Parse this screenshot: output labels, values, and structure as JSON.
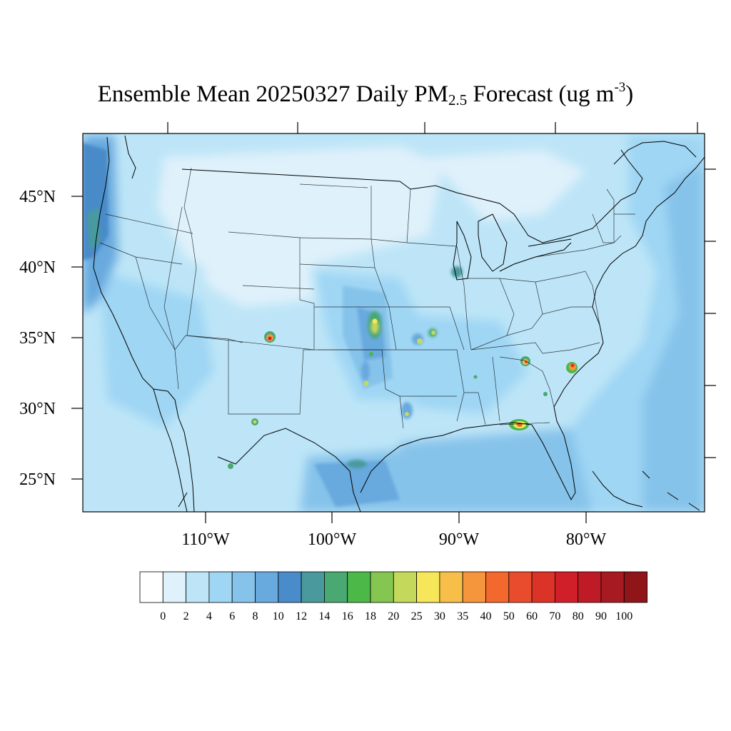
{
  "title": {
    "prefix": "Ensemble Mean 20250327 Daily PM",
    "sub": "2.5",
    "mid": " Forecast (ug m",
    "sup": "-3",
    "suffix": ")"
  },
  "lat_labels": [
    "45°N",
    "40°N",
    "35°N",
    "30°N",
    "25°N"
  ],
  "lon_labels": [
    "110°W",
    "100°W",
    "90°W",
    "80°W"
  ],
  "colorbar": {
    "colors": [
      "#ffffff",
      "#dff1fb",
      "#bde5f7",
      "#9fd6f4",
      "#86c3ea",
      "#68a9de",
      "#4a8bc9",
      "#4a9a9d",
      "#4aa872",
      "#4cb848",
      "#84c650",
      "#c4d95c",
      "#f6e65a",
      "#f7bf4a",
      "#f6963c",
      "#f3682d",
      "#e94c2c",
      "#dc3328",
      "#d11f2a",
      "#bf1b26",
      "#a81a22",
      "#8f1519"
    ],
    "labels": [
      "0",
      "2",
      "4",
      "6",
      "8",
      "10",
      "12",
      "14",
      "16",
      "18",
      "20",
      "25",
      "30",
      "35",
      "40",
      "50",
      "60",
      "70",
      "80",
      "90",
      "100"
    ]
  }
}
